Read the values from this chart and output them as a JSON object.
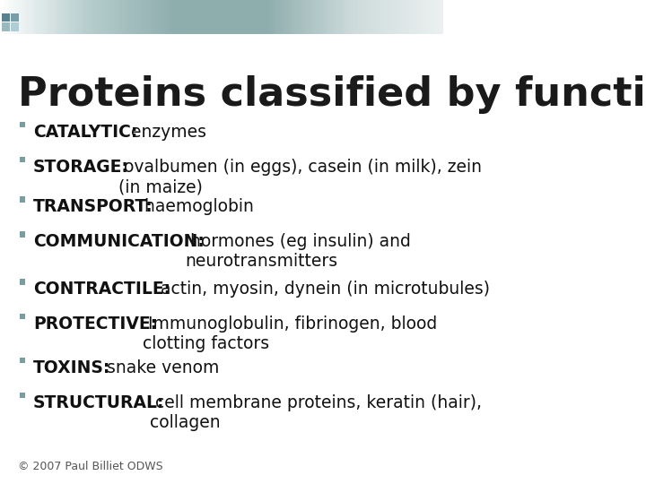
{
  "title": "Proteins classified by function",
  "title_fontsize": 32,
  "title_fontweight": "bold",
  "title_color": "#1a1a1a",
  "title_font": "Arial",
  "bg_color": "#ffffff",
  "bullet_color": "#7a9e9f",
  "bullet_items": [
    {
      "bold": "CATALYTIC:",
      "normal": " enzymes"
    },
    {
      "bold": "STORAGE:",
      "normal": " ovalbumen (in eggs), casein (in milk), zein\n(in maize)"
    },
    {
      "bold": "TRANSPORT:",
      "normal": " haemoglobin"
    },
    {
      "bold": "COMMUNICATION:",
      "normal": " hormones (eg insulin) and\nneurotransmitters"
    },
    {
      "bold": "CONTRACTILE:",
      "normal": " actin, myosin, dynein (in microtubules)"
    },
    {
      "bold": "PROTECTIVE:",
      "normal": " Immunoglobulin, fibrinogen, blood\nclotting factors"
    },
    {
      "bold": "TOXINS:",
      "normal": " snake venom"
    },
    {
      "bold": "STRUCTURAL:",
      "normal": " cell membrane proteins, keratin (hair),\ncollagen"
    }
  ],
  "item_fontsize": 13.5,
  "footer_text": "© 2007 Paul Billiet ODWS",
  "footer_fontsize": 9,
  "footer_color": "#555555",
  "footer_link_color": "#4472c4",
  "header_bar_color1": "#7a9e9f",
  "header_bar_color2": "#c5d5d5",
  "header_squares_color": "#6a8fa0"
}
